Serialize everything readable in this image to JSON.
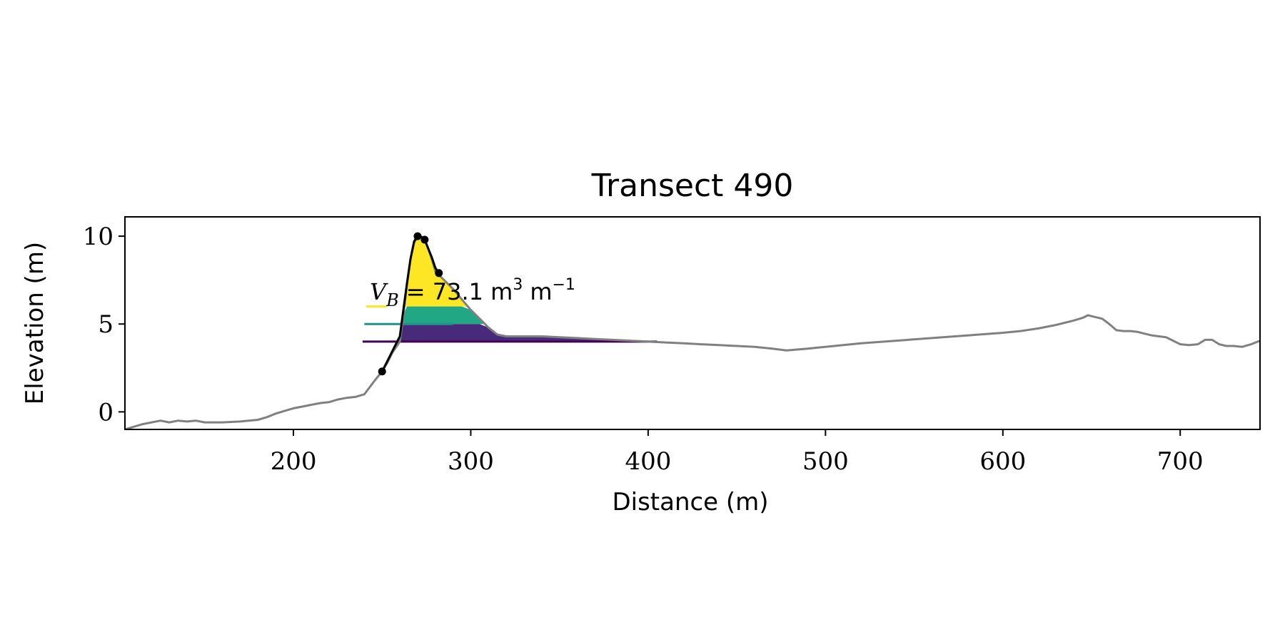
{
  "chart_data": {
    "type": "line",
    "title": "Transect 490",
    "xlabel": "Distance (m)",
    "ylabel": "Elevation (m)",
    "xlim": [
      105,
      745
    ],
    "ylim": [
      -1,
      11.1
    ],
    "xticks": [
      200,
      300,
      400,
      500,
      600,
      700
    ],
    "yticks": [
      0,
      5,
      10
    ],
    "grid": false,
    "legend": "none",
    "annotation": {
      "symbol": "V",
      "subscript": "B",
      "value": "= 73.1 m",
      "sup1": "3",
      "unit2": "m",
      "sup2": "−1"
    },
    "colors": {
      "profile": "#808080",
      "dune": "#000000",
      "top_band": "#fde725",
      "middle_band": "#21a784",
      "bottom_band": "#472b7a",
      "level_high": "#fde725",
      "level_mid": "#21918c",
      "level_low": "#440154"
    },
    "series": [
      {
        "role": "profile",
        "x": [
          105,
          115,
          125,
          130,
          135,
          140,
          145,
          150,
          155,
          160,
          170,
          180,
          185,
          190,
          195,
          200,
          205,
          210,
          215,
          220,
          225,
          230,
          235,
          240,
          243,
          246,
          250,
          253,
          256,
          260,
          262,
          264,
          266,
          268,
          270,
          272,
          274,
          276,
          278,
          280,
          282,
          285,
          290,
          295,
          300,
          305,
          310,
          315,
          320,
          330,
          340,
          350,
          360,
          370,
          380,
          390,
          400,
          410,
          420,
          430,
          440,
          450,
          460,
          470,
          478,
          490,
          500,
          520,
          540,
          560,
          580,
          600,
          610,
          620,
          630,
          640,
          645,
          648,
          652,
          656,
          660,
          664,
          668,
          672,
          676,
          680,
          684,
          688,
          692,
          696,
          700,
          705,
          710,
          714,
          718,
          722,
          726,
          730,
          735,
          740,
          745
        ],
        "y": [
          -1.0,
          -0.7,
          -0.5,
          -0.6,
          -0.5,
          -0.55,
          -0.5,
          -0.6,
          -0.6,
          -0.6,
          -0.55,
          -0.45,
          -0.3,
          -0.1,
          0.05,
          0.2,
          0.3,
          0.4,
          0.5,
          0.55,
          0.7,
          0.8,
          0.85,
          1.0,
          1.4,
          1.8,
          2.3,
          2.8,
          3.4,
          4.0,
          5.5,
          7.2,
          8.7,
          9.6,
          10.0,
          10.0,
          9.8,
          9.3,
          8.7,
          8.0,
          7.8,
          7.5,
          7.0,
          6.4,
          5.8,
          5.3,
          4.8,
          4.4,
          4.3,
          4.3,
          4.3,
          4.25,
          4.2,
          4.15,
          4.1,
          4.05,
          4.0,
          3.95,
          3.9,
          3.85,
          3.8,
          3.75,
          3.7,
          3.6,
          3.5,
          3.6,
          3.7,
          3.9,
          4.05,
          4.2,
          4.35,
          4.5,
          4.6,
          4.75,
          4.95,
          5.2,
          5.35,
          5.5,
          5.4,
          5.3,
          5.0,
          4.65,
          4.6,
          4.6,
          4.55,
          4.45,
          4.35,
          4.3,
          4.25,
          4.05,
          3.85,
          3.8,
          3.85,
          4.1,
          4.1,
          3.85,
          3.75,
          3.75,
          3.7,
          3.85,
          4.05
        ]
      },
      {
        "role": "dune",
        "x": [
          250,
          252,
          254,
          256,
          258,
          260,
          262,
          264,
          266,
          268,
          270,
          272,
          274,
          276,
          278,
          280,
          282
        ],
        "y": [
          2.3,
          2.7,
          3.1,
          3.5,
          3.9,
          4.3,
          5.8,
          7.3,
          8.7,
          9.7,
          10.0,
          9.95,
          9.8,
          9.3,
          8.8,
          8.2,
          7.9
        ]
      }
    ],
    "markers": {
      "x": [
        250,
        270,
        274,
        282
      ],
      "y": [
        2.3,
        10.0,
        9.8,
        7.9
      ]
    },
    "levels": [
      {
        "role": "level_high",
        "y": 6.0,
        "x_start": 241,
        "x_end": 253
      },
      {
        "role": "level_mid",
        "y": 5.0,
        "x_start": 240,
        "x_end": 290
      },
      {
        "role": "level_low",
        "y": 4.0,
        "x_start": 239,
        "x_end": 405
      }
    ],
    "fill_bands": [
      {
        "role": "top_band",
        "y_low": 6.0,
        "y_high": 10.0
      },
      {
        "role": "middle_band",
        "y_low": 5.0,
        "y_high": 6.0
      },
      {
        "role": "bottom_band",
        "y_low": 4.0,
        "y_high": 5.0,
        "x_max": 405
      }
    ]
  }
}
